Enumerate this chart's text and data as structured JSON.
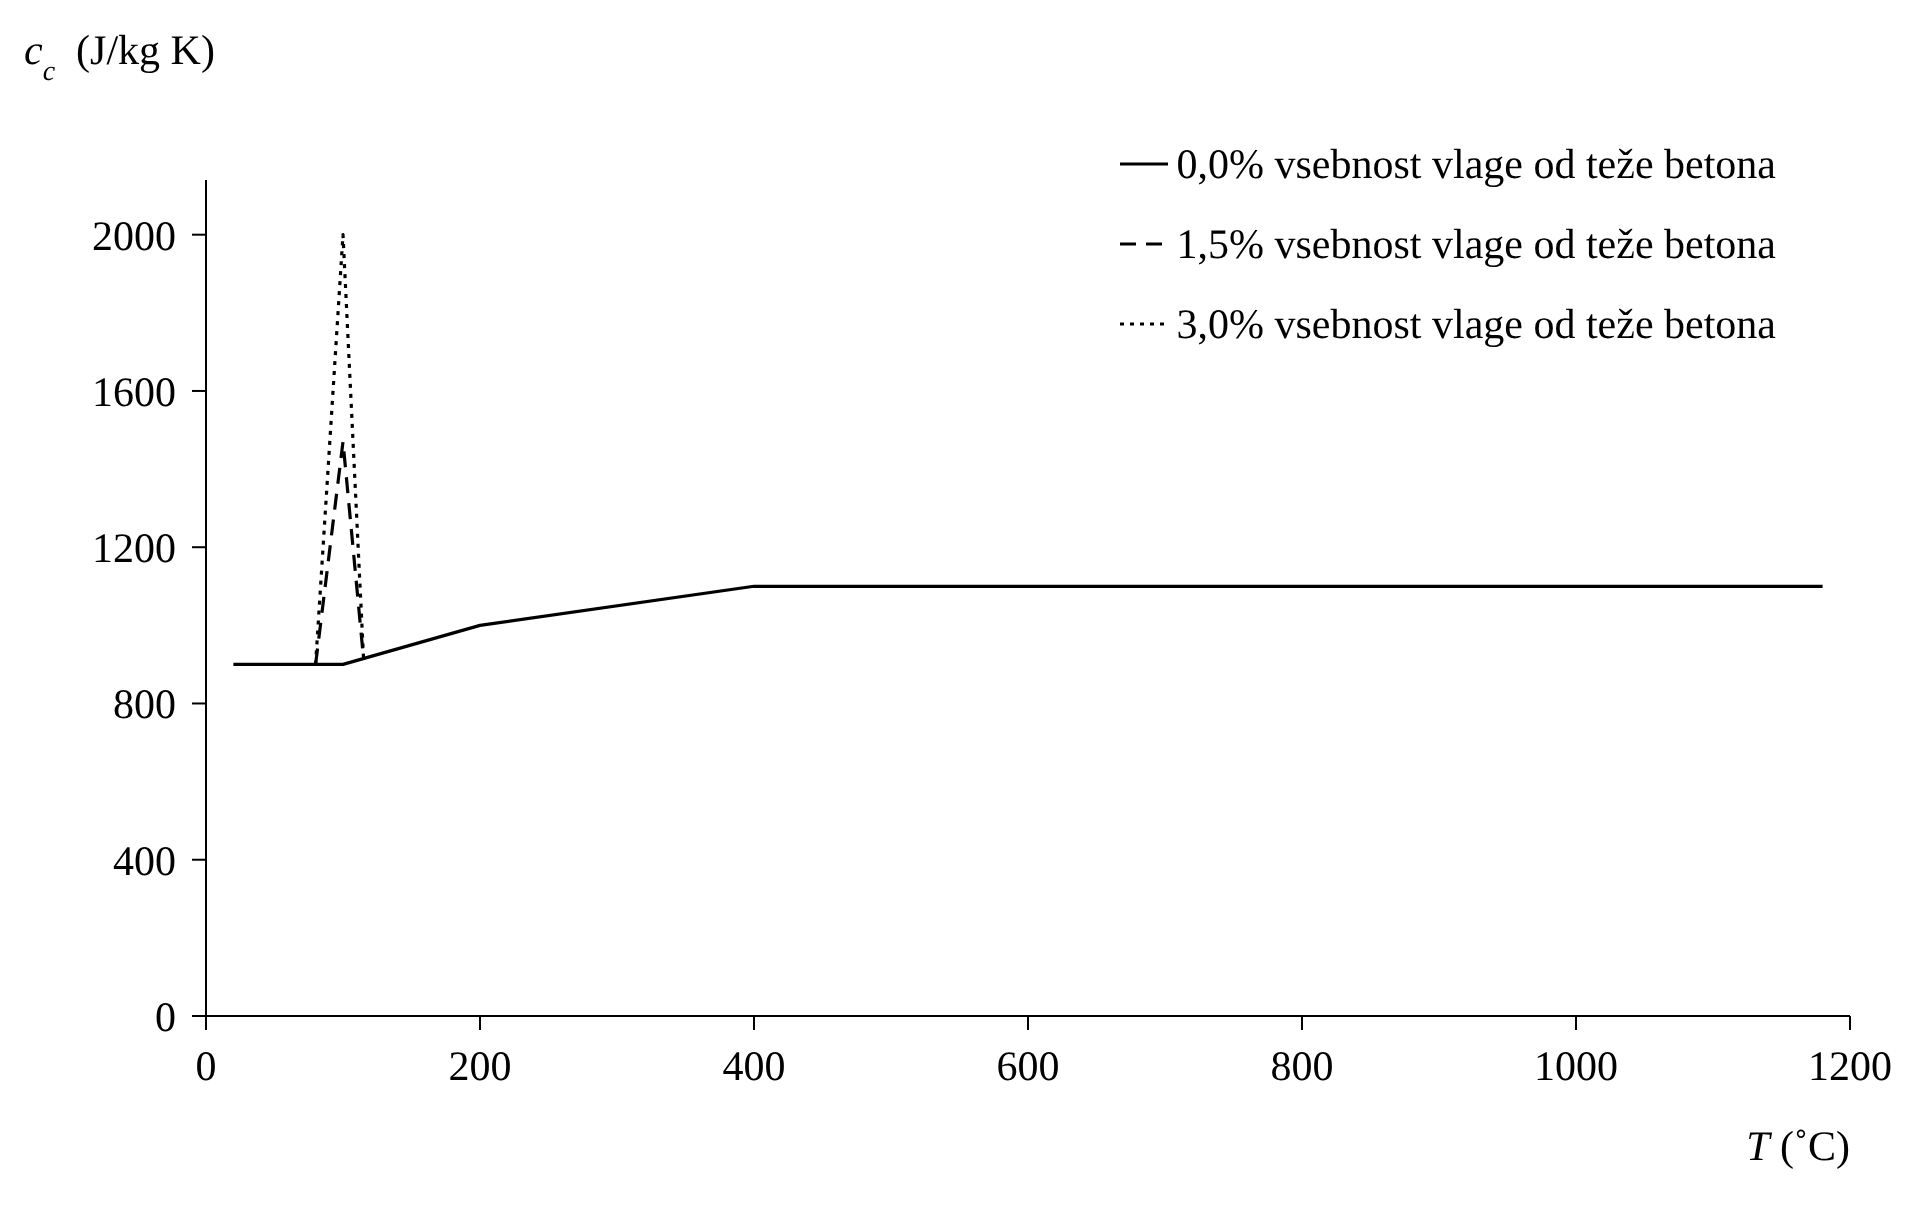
{
  "chart_data": {
    "type": "line",
    "ylabel": "c$_{c}$  (J/kg K)",
    "xlabel": "T (˚C)",
    "xlim": [
      0,
      1200
    ],
    "xticks": [
      0,
      200,
      400,
      600,
      800,
      1000,
      1200
    ],
    "ylim": [
      0,
      2140
    ],
    "yticks": [
      0,
      400,
      800,
      1200,
      1600,
      2000
    ],
    "grid": false,
    "legend": "top right",
    "marker": "none",
    "series": [
      {
        "name": "0,0% vsebnost vlage od teže betona",
        "color": "#000000",
        "line_style": "solid",
        "x": [
          20,
          100,
          200,
          400,
          1180
        ],
        "values": [
          900,
          900,
          1000,
          1100,
          1100
        ]
      },
      {
        "name": "1,5% vsebnost vlage od teže betona",
        "color": "#000000",
        "line_style": "dashed",
        "x": [
          80,
          100,
          115
        ],
        "values": [
          900,
          1470,
          915
        ]
      },
      {
        "name": "3,0% vsebnost vlage od teže betona",
        "color": "#000000",
        "line_style": "dotted",
        "x": [
          80,
          100,
          115
        ],
        "values": [
          900,
          2000,
          915
        ]
      }
    ]
  }
}
